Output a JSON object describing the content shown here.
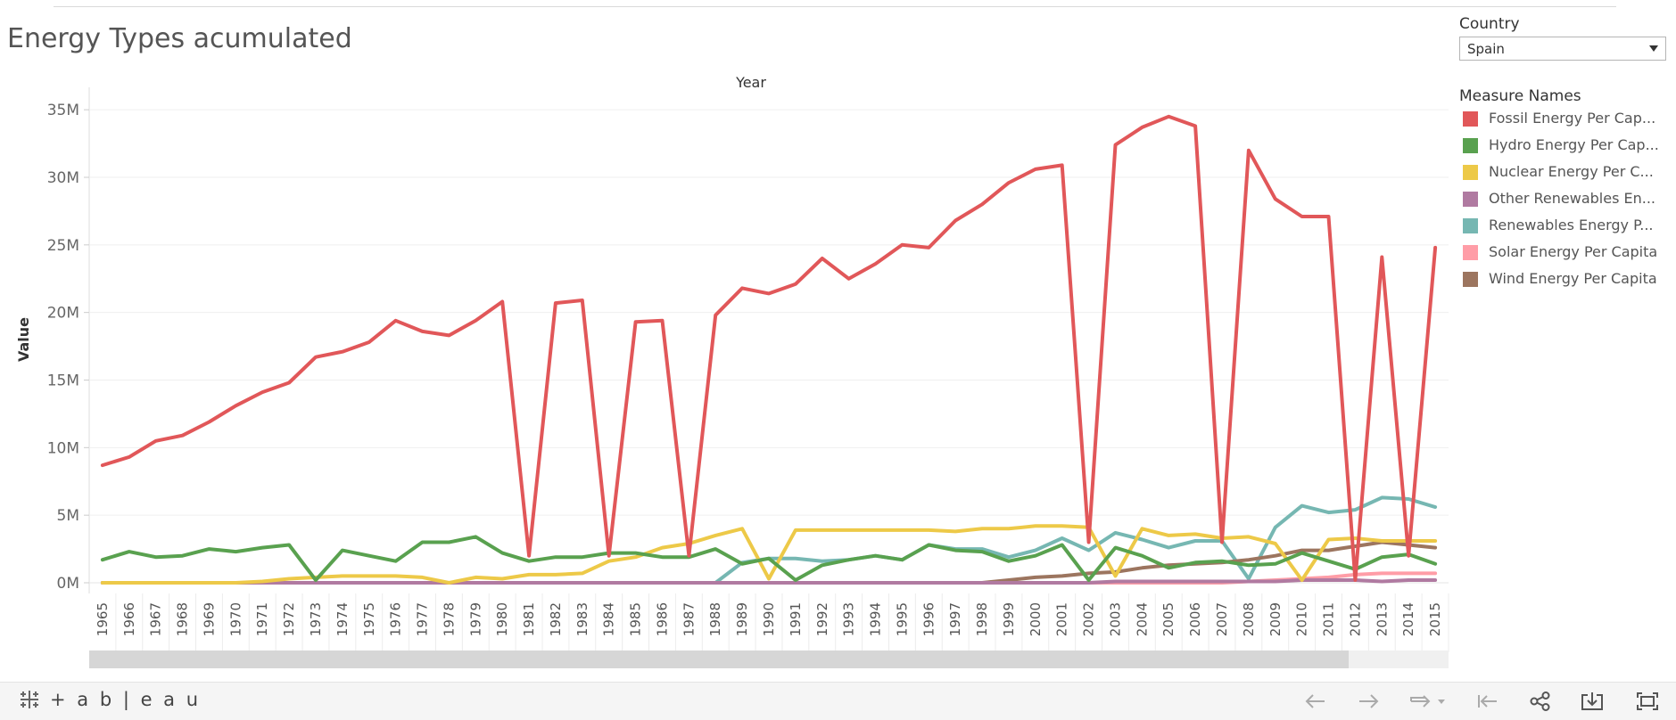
{
  "title": "Energy Types acumulated",
  "filter": {
    "label": "Country",
    "value": "Spain"
  },
  "legend": {
    "title": "Measure Names",
    "items": [
      {
        "label": "Fossil Energy Per Cap...",
        "color": "#e15759"
      },
      {
        "label": "Hydro Energy Per Cap...",
        "color": "#59a14f"
      },
      {
        "label": "Nuclear Energy Per C...",
        "color": "#edc948"
      },
      {
        "label": "Other Renewables En...",
        "color": "#b07aa1"
      },
      {
        "label": "Renewables Energy P...",
        "color": "#76b7b2"
      },
      {
        "label": "Solar Energy Per Capita",
        "color": "#ff9da7"
      },
      {
        "label": "Wind Energy Per Capita",
        "color": "#9c755f"
      }
    ]
  },
  "footer": {
    "logo_text": "+ a b | e a u",
    "logo_icon": "tableau-cross-icon"
  },
  "chart_data": {
    "type": "line",
    "xlabel_top": "Year",
    "ylabel": "Value",
    "ylim": [
      0,
      36000000
    ],
    "yticks": [
      0,
      5000000,
      10000000,
      15000000,
      20000000,
      25000000,
      30000000,
      35000000
    ],
    "ytick_labels": [
      "0M",
      "5M",
      "10M",
      "15M",
      "20M",
      "25M",
      "30M",
      "35M"
    ],
    "grid": "horizontal",
    "x": [
      1965,
      1966,
      1967,
      1968,
      1969,
      1970,
      1971,
      1972,
      1973,
      1974,
      1975,
      1976,
      1977,
      1978,
      1979,
      1980,
      1981,
      1982,
      1983,
      1984,
      1985,
      1986,
      1987,
      1988,
      1989,
      1990,
      1991,
      1992,
      1993,
      1994,
      1995,
      1996,
      1997,
      1998,
      1999,
      2000,
      2001,
      2002,
      2003,
      2004,
      2005,
      2006,
      2007,
      2008,
      2009,
      2010,
      2011,
      2012,
      2013,
      2014,
      2015
    ],
    "series": [
      {
        "name": "Fossil Energy Per Cap...",
        "color": "#e15759",
        "values": [
          8700000,
          9300000,
          10500000,
          10900000,
          11900000,
          13100000,
          14100000,
          14800000,
          16700000,
          17100000,
          17800000,
          19400000,
          18600000,
          18300000,
          19400000,
          20800000,
          2000000,
          20700000,
          20900000,
          2000000,
          19300000,
          19400000,
          2000000,
          19800000,
          21800000,
          21400000,
          22100000,
          24000000,
          22500000,
          23600000,
          25000000,
          24800000,
          26800000,
          28000000,
          29600000,
          30600000,
          30900000,
          3000000,
          32400000,
          33700000,
          34500000,
          33800000,
          3000000,
          32000000,
          28400000,
          27100000,
          27100000,
          200000,
          24100000,
          2000000,
          24800000
        ]
      },
      {
        "name": "Hydro Energy Per Cap...",
        "color": "#59a14f",
        "values": [
          1700000,
          2300000,
          1900000,
          2000000,
          2500000,
          2300000,
          2600000,
          2800000,
          200000,
          2400000,
          2000000,
          1600000,
          3000000,
          3000000,
          3400000,
          2200000,
          1600000,
          1900000,
          1900000,
          2200000,
          2200000,
          1900000,
          1900000,
          2500000,
          1400000,
          1800000,
          200000,
          1300000,
          1700000,
          2000000,
          1700000,
          2800000,
          2400000,
          2300000,
          1600000,
          2000000,
          2800000,
          200000,
          2600000,
          2000000,
          1100000,
          1500000,
          1600000,
          1300000,
          1400000,
          2200000,
          1600000,
          1000000,
          1900000,
          2100000,
          1400000
        ]
      },
      {
        "name": "Nuclear Energy Per C...",
        "color": "#edc948",
        "values": [
          0,
          0,
          0,
          0,
          0,
          0,
          100000,
          300000,
          400000,
          500000,
          500000,
          500000,
          400000,
          0,
          400000,
          300000,
          600000,
          600000,
          700000,
          1600000,
          1900000,
          2600000,
          2900000,
          3500000,
          4000000,
          300000,
          3900000,
          3900000,
          3900000,
          3900000,
          3900000,
          3900000,
          3800000,
          4000000,
          4000000,
          4200000,
          4200000,
          4100000,
          500000,
          4000000,
          3500000,
          3600000,
          3300000,
          3400000,
          2900000,
          200000,
          3200000,
          3300000,
          3100000,
          3100000,
          3100000
        ]
      },
      {
        "name": "Other Renewables En...",
        "color": "#b07aa1",
        "values": [
          0,
          0,
          0,
          0,
          0,
          0,
          0,
          0,
          0,
          0,
          0,
          0,
          0,
          0,
          0,
          0,
          0,
          0,
          0,
          0,
          0,
          0,
          0,
          0,
          0,
          0,
          0,
          0,
          0,
          0,
          0,
          0,
          0,
          0,
          0,
          0,
          0,
          0,
          100000,
          100000,
          100000,
          100000,
          100000,
          100000,
          100000,
          200000,
          200000,
          200000,
          100000,
          200000,
          200000
        ]
      },
      {
        "name": "Renewables Energy P...",
        "color": "#76b7b2",
        "values": [
          0,
          0,
          0,
          0,
          0,
          0,
          0,
          0,
          0,
          0,
          0,
          0,
          0,
          0,
          0,
          0,
          0,
          0,
          0,
          0,
          0,
          0,
          0,
          0,
          1500000,
          1800000,
          1800000,
          1600000,
          1700000,
          2000000,
          1700000,
          2800000,
          2500000,
          2500000,
          1900000,
          2400000,
          3300000,
          2400000,
          3700000,
          3200000,
          2600000,
          3100000,
          3100000,
          300000,
          4100000,
          5700000,
          5200000,
          5400000,
          6300000,
          6200000,
          5600000
        ]
      },
      {
        "name": "Solar Energy Per Capita",
        "color": "#ff9da7",
        "values": [
          0,
          0,
          0,
          0,
          0,
          0,
          0,
          0,
          0,
          0,
          0,
          0,
          0,
          0,
          0,
          0,
          0,
          0,
          0,
          0,
          0,
          0,
          0,
          0,
          0,
          0,
          0,
          0,
          0,
          0,
          0,
          0,
          0,
          0,
          0,
          0,
          0,
          0,
          0,
          0,
          0,
          0,
          0,
          100000,
          200000,
          300000,
          400000,
          600000,
          700000,
          700000,
          700000
        ]
      },
      {
        "name": "Wind Energy Per Capita",
        "color": "#9c755f",
        "values": [
          0,
          0,
          0,
          0,
          0,
          0,
          0,
          0,
          0,
          0,
          0,
          0,
          0,
          0,
          0,
          0,
          0,
          0,
          0,
          0,
          0,
          0,
          0,
          0,
          0,
          0,
          0,
          0,
          0,
          0,
          0,
          0,
          0,
          0,
          200000,
          400000,
          500000,
          700000,
          800000,
          1100000,
          1300000,
          1400000,
          1500000,
          1700000,
          2000000,
          2400000,
          2400000,
          2700000,
          3000000,
          2800000,
          2600000
        ]
      }
    ]
  }
}
